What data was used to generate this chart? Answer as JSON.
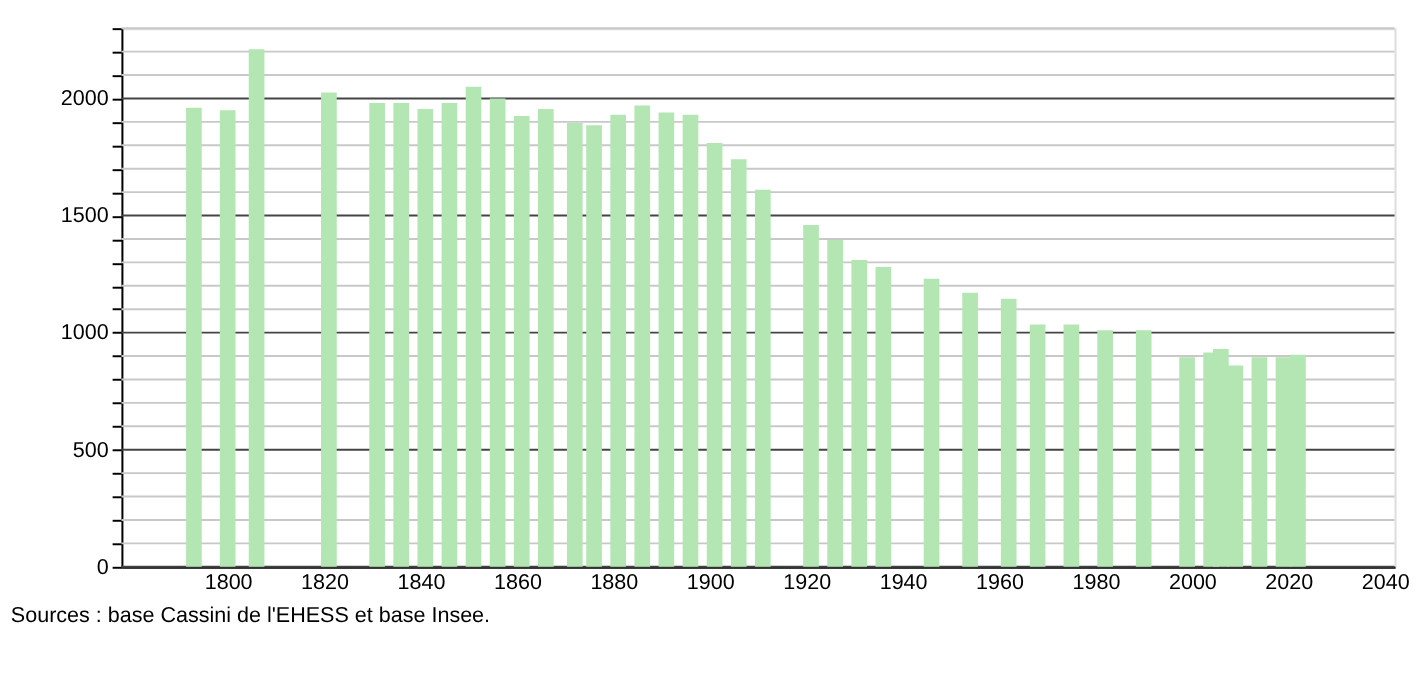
{
  "chart_data": {
    "type": "bar",
    "color": "#b3e6b3",
    "x": [
      1793,
      1800,
      1806,
      1821,
      1831,
      1836,
      1841,
      1846,
      1851,
      1856,
      1861,
      1866,
      1872,
      1876,
      1881,
      1886,
      1891,
      1896,
      1901,
      1906,
      1911,
      1921,
      1926,
      1931,
      1936,
      1946,
      1954,
      1962,
      1968,
      1975,
      1982,
      1990,
      1999,
      2004,
      2006,
      2009,
      2014,
      2019,
      2022
    ],
    "values": [
      1960,
      1950,
      2210,
      2025,
      1980,
      1980,
      1955,
      1980,
      2050,
      2000,
      1925,
      1955,
      1895,
      1885,
      1930,
      1970,
      1940,
      1930,
      1810,
      1740,
      1610,
      1460,
      1395,
      1310,
      1280,
      1230,
      1170,
      1145,
      1035,
      1035,
      1010,
      1010,
      895,
      915,
      930,
      860,
      895,
      895,
      905
    ],
    "xlim": [
      1780,
      2040
    ],
    "xticks": [
      1800,
      1820,
      1840,
      1860,
      1880,
      1900,
      1920,
      1940,
      1960,
      1980,
      2000,
      2020,
      2040
    ],
    "ylim": [
      0,
      2300
    ],
    "yticks": [
      0,
      {
        "value": 100,
        "label": null
      },
      {
        "value": 200,
        "label": null
      },
      {
        "value": 300,
        "label": null
      },
      {
        "value": 400,
        "label": null
      },
      500,
      {
        "value": 600,
        "label": null
      },
      {
        "value": 700,
        "label": null
      },
      {
        "value": 800,
        "label": null
      },
      {
        "value": 900,
        "label": null
      },
      1000,
      {
        "value": 1100,
        "label": null
      },
      {
        "value": 1200,
        "label": null
      },
      {
        "value": 1300,
        "label": null
      },
      {
        "value": 1400,
        "label": null
      },
      1500,
      {
        "value": 1600,
        "label": null
      },
      {
        "value": 1700,
        "label": null
      },
      {
        "value": 1800,
        "label": null
      },
      {
        "value": 1900,
        "label": null
      },
      2000,
      {
        "value": 2100,
        "label": null
      },
      {
        "value": 2200,
        "label": null
      },
      {
        "value": 2300,
        "label": null
      }
    ],
    "grid": true,
    "annotations": [
      "Sources : base Cassini de l'EHESS et base Insee."
    ]
  }
}
